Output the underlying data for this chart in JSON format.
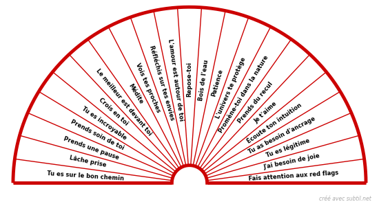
{
  "labels": [
    "Tu es sur le bon chemin",
    "Lâche prise",
    "Prends une pause",
    "Prends soin de toi",
    "Tu es incroyable",
    "Crois en toi",
    "Le meilleur est devant toi",
    "Médite",
    "Vois tes proches",
    "Réfléchis sur tes envies",
    "L'amour est autour de toi",
    "Repose-toi",
    "Bois de l'eau",
    "Patience",
    "L'univers te protège",
    "Promène-toi dans la nature",
    "Prends du recul",
    "Je t'aime",
    "Écoute ton intuition",
    "Tu as besoin d'ancrage",
    "Tu es légitime",
    "J'ai besoin de joie",
    "Fais attention aux red flags"
  ],
  "arc_color": "#cc0000",
  "line_color": "#cc0000",
  "text_color": "#000000",
  "bg_color": "#ffffff",
  "watermark": "créé avec subtil.net",
  "watermark_color": "#aaaaaa",
  "r_inner": 0.1,
  "r_outer": 1.0,
  "arc_lw": 3.5,
  "line_lw": 1.0,
  "fontsize": 6.0
}
